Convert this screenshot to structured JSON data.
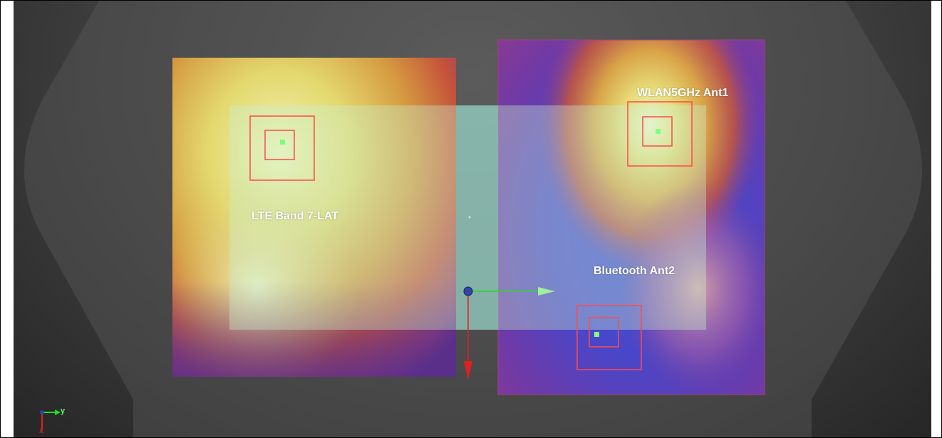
{
  "viewport": {
    "labels": {
      "lte": "LTE Band 7-LAT",
      "wlan": "WLAN5GHz Ant1",
      "bluetooth": "Bluetooth Ant2"
    },
    "triad": {
      "y_label": "y",
      "x_label": "x"
    },
    "colors": {
      "marker_outline": "#ff4a4a",
      "marker_point": "#7dff7d",
      "overlay": "#c8f0d2",
      "axis_green": "#22dd22",
      "axis_red": "#e02020",
      "origin": "#3344aa"
    }
  }
}
